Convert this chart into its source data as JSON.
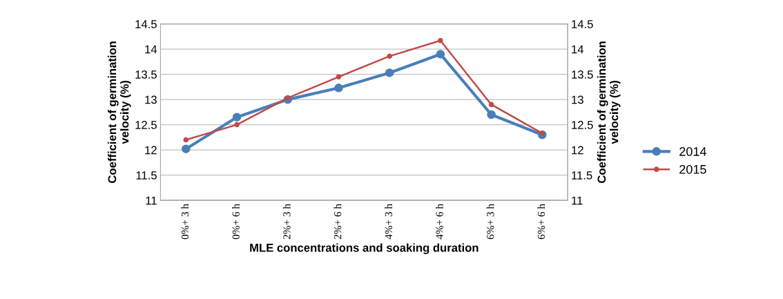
{
  "chart_data": {
    "type": "line",
    "xlabel": "MLE concentrations and soaking duration",
    "ylabel": "Coefficient of germination\nvelocity (%)",
    "y2label": "Coefficient of germination\nvelocity (%)",
    "categories": [
      "0%+ 3 h",
      "0%+ 6 h",
      "2%+ 3 h",
      "2%+ 6 h",
      "4%+ 3 h",
      "4%+ 6 h",
      "6%+ 3 h",
      "6%+ 6 h"
    ],
    "series": [
      {
        "name": "2014",
        "color": "#4a7ebb",
        "values": [
          12.02,
          12.65,
          13.0,
          13.23,
          13.53,
          13.9,
          12.7,
          12.3
        ]
      },
      {
        "name": "2015",
        "color": "#be4b48",
        "values": [
          12.2,
          12.5,
          13.03,
          13.45,
          13.86,
          14.17,
          12.9,
          12.33
        ]
      }
    ],
    "ylim": [
      11,
      14.5
    ],
    "yticks": [
      11,
      11.5,
      12,
      12.5,
      13,
      13.5,
      14,
      14.5
    ],
    "y2lim": [
      11,
      14.5
    ],
    "y2ticks": [
      11,
      11.5,
      12,
      12.5,
      13,
      13.5,
      14,
      14.5
    ],
    "grid": true,
    "legend": "right",
    "marker": "circle",
    "line_style": "solid"
  }
}
